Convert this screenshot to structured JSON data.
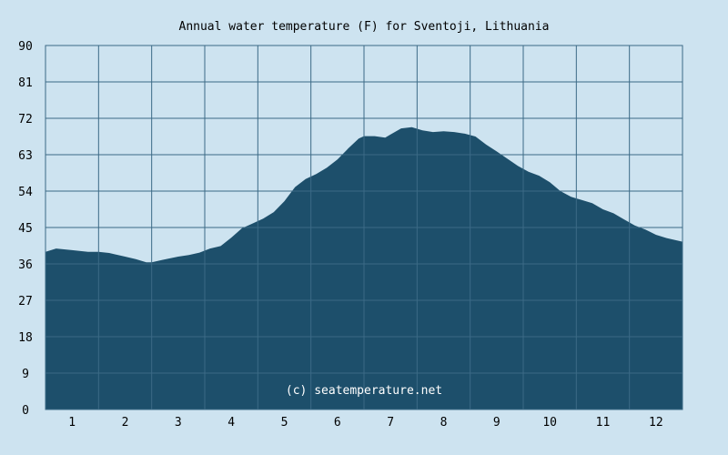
{
  "chart_data": {
    "type": "area",
    "title": "Annual water temperature (F) for Sventoji, Lithuania",
    "watermark": "(c) seatemperature.net",
    "xlabel": "",
    "ylabel": "",
    "ylim": [
      0,
      90
    ],
    "y_ticks": [
      "0",
      "9",
      "18",
      "27",
      "36",
      "45",
      "54",
      "63",
      "72",
      "81",
      "90"
    ],
    "x_ticks": [
      "1",
      "2",
      "3",
      "4",
      "5",
      "6",
      "7",
      "8",
      "9",
      "10",
      "11",
      "12"
    ],
    "x_range": [
      0.5,
      12.5
    ],
    "grid": true,
    "colors": {
      "background": "#cde3f0",
      "fill": "#1d4f6b",
      "grid": "#3b6a86",
      "watermark": "#ffffff"
    },
    "series": [
      {
        "x": [
          0.5,
          0.7,
          1.0,
          1.3,
          1.5,
          1.7,
          2.0,
          2.2,
          2.4,
          2.5,
          2.7,
          3.0,
          3.2,
          3.4,
          3.6,
          3.8,
          4.0,
          4.2,
          4.4,
          4.6,
          4.8,
          5.0,
          5.2,
          5.4,
          5.6,
          5.8,
          6.0,
          6.2,
          6.4,
          6.5,
          6.7,
          6.9,
          7.0,
          7.2,
          7.4,
          7.6,
          7.8,
          8.0,
          8.2,
          8.4,
          8.6,
          8.8,
          9.0,
          9.2,
          9.4,
          9.6,
          9.8,
          10.0,
          10.2,
          10.4,
          10.6,
          10.8,
          11.0,
          11.2,
          11.4,
          11.6,
          11.8,
          12.0,
          12.2,
          12.5
        ],
        "values": [
          39.0,
          39.8,
          39.4,
          39.0,
          39.0,
          38.7,
          37.8,
          37.2,
          36.4,
          36.4,
          37.0,
          37.8,
          38.2,
          38.8,
          39.8,
          40.4,
          42.5,
          44.8,
          46.0,
          47.2,
          48.8,
          51.5,
          55.0,
          57.0,
          58.2,
          59.8,
          61.8,
          64.5,
          67.0,
          67.6,
          67.6,
          67.2,
          68.0,
          69.5,
          69.8,
          69.0,
          68.6,
          68.8,
          68.6,
          68.2,
          67.5,
          65.5,
          63.8,
          62.0,
          60.2,
          58.8,
          57.8,
          56.2,
          54.0,
          52.6,
          51.8,
          51.0,
          49.5,
          48.5,
          47.0,
          45.5,
          44.5,
          43.2,
          42.4,
          41.5
        ]
      }
    ]
  }
}
